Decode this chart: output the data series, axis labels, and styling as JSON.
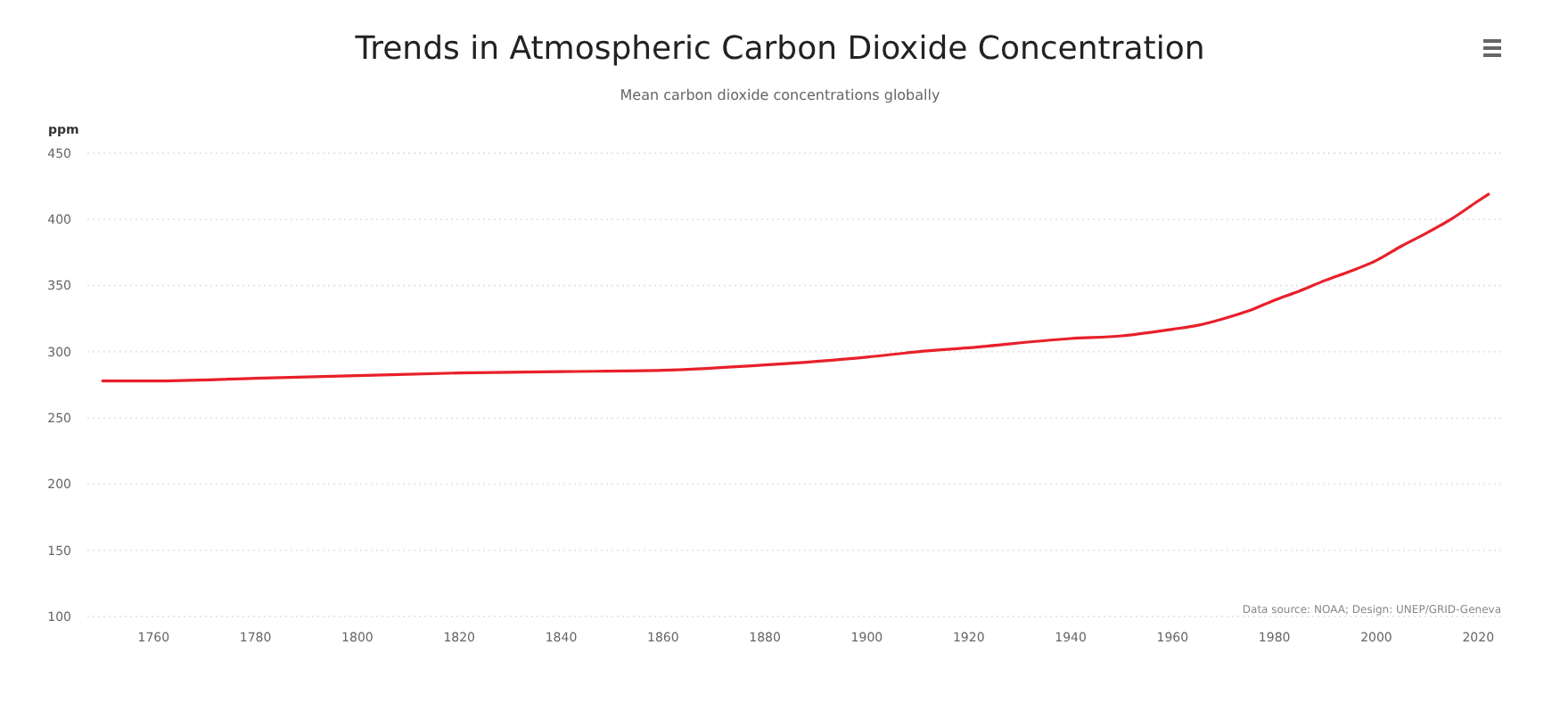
{
  "chart_data": {
    "type": "line",
    "title": "Trends in Atmospheric Carbon Dioxide Concentration",
    "subtitle": "Mean carbon dioxide concentrations globally",
    "ylabel": "ppm",
    "annotations": [
      "Data source: NOAA; Design: UNEP/GRID-Geneva"
    ],
    "x": [
      1750,
      1760,
      1780,
      1800,
      1820,
      1840,
      1860,
      1880,
      1900,
      1910,
      1920,
      1940,
      1950,
      1960,
      1965,
      1970,
      1975,
      1980,
      1985,
      1990,
      1995,
      2000,
      2005,
      2010,
      2015,
      2020,
      2022
    ],
    "series": [
      {
        "color": "#e8202a",
        "values": [
          278,
          278,
          280,
          282,
          284,
          285,
          286,
          290,
          296,
          300,
          303,
          310,
          312,
          317,
          320,
          325,
          331,
          339,
          346,
          354,
          361,
          369,
          380,
          390,
          401,
          414,
          419
        ]
      }
    ],
    "xlim": [
      1747,
      2024.5
    ],
    "xticks": [
      1760,
      1780,
      1800,
      1820,
      1840,
      1860,
      1880,
      1900,
      1920,
      1940,
      1960,
      1980,
      2000,
      2020
    ],
    "ylim": [
      100,
      450
    ],
    "yticks": [
      100,
      150,
      200,
      250,
      300,
      350,
      400,
      450
    ],
    "grid": "y",
    "marker": "none",
    "line_style": "solid"
  }
}
